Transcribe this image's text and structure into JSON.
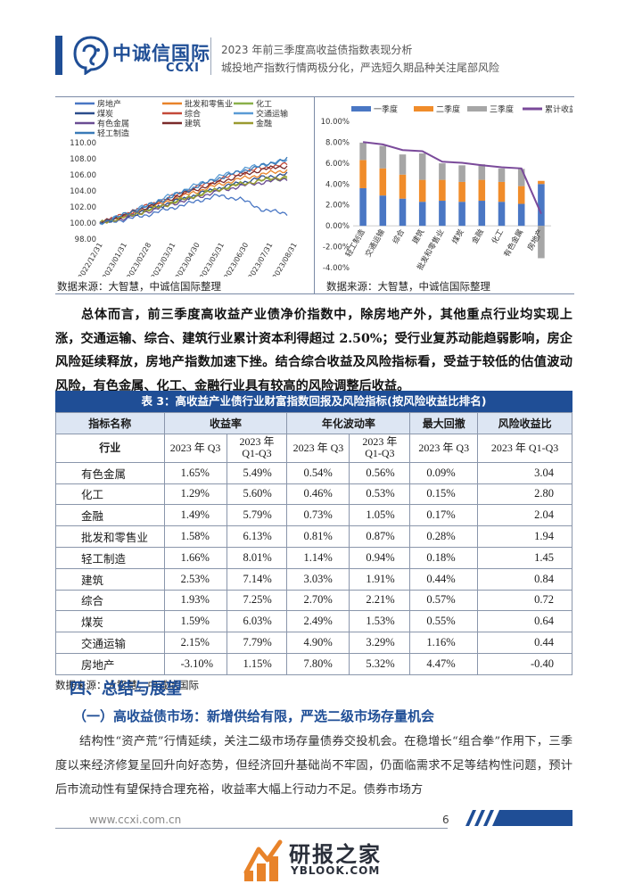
{
  "header": {
    "logo_cn": "中诚信国际",
    "logo_en": "CCXI",
    "title_line1": "2023 年前三季度高收益债指数表现分析",
    "title_line2": "城投地产指数行情两极分化，严选短久期品种关注尾部风险"
  },
  "chart_left": {
    "type": "line",
    "legend": [
      "房地产",
      "批发和零售业",
      "化工",
      "煤炭",
      "综合",
      "交通运输",
      "有色金属",
      "建筑",
      "金融",
      "轻工制造"
    ],
    "legend_colors": [
      "#4a77c4",
      "#e8832a",
      "#8ab04a",
      "#2b4d8c",
      "#c44a3a",
      "#5a9bd5",
      "#6a4c93",
      "#7a2a2a",
      "#9a9a30",
      "#3a7ab8"
    ],
    "yticks": [
      "110.00",
      "108.00",
      "106.00",
      "104.00",
      "102.00",
      "100.00",
      "98.00"
    ],
    "ylim": [
      98,
      110
    ],
    "xticks": [
      "2022/12/31",
      "2023/01/31",
      "2023/02/28",
      "2023/03/31",
      "2023/04/30",
      "2023/05/31",
      "2023/06/30",
      "2023/07/31",
      "2023/08/31"
    ],
    "series_end": [
      {
        "name": "房地产",
        "values": [
          100.0,
          100.4,
          101.0,
          101.8,
          102.6,
          103.4,
          103.0,
          101.6,
          101.2
        ]
      },
      {
        "name": "批发和零售业",
        "values": [
          100.0,
          100.8,
          101.8,
          102.8,
          103.8,
          104.7,
          105.5,
          106.1,
          106.6
        ]
      },
      {
        "name": "化工",
        "values": [
          100.0,
          100.7,
          101.6,
          102.5,
          103.4,
          104.2,
          104.9,
          105.3,
          105.6
        ]
      },
      {
        "name": "煤炭",
        "values": [
          100.0,
          100.7,
          101.6,
          102.5,
          103.4,
          104.3,
          105.0,
          105.7,
          106.1
        ]
      },
      {
        "name": "综合",
        "values": [
          100.0,
          101.0,
          102.1,
          103.2,
          104.3,
          105.3,
          106.2,
          106.9,
          107.3
        ]
      },
      {
        "name": "交通运输",
        "values": [
          100.0,
          101.0,
          102.2,
          103.4,
          104.6,
          105.7,
          106.6,
          107.3,
          107.8
        ]
      },
      {
        "name": "有色金属",
        "values": [
          100.0,
          100.6,
          101.4,
          102.3,
          103.1,
          103.9,
          104.6,
          105.1,
          105.5
        ]
      },
      {
        "name": "建筑",
        "values": [
          100.0,
          100.9,
          102.0,
          103.0,
          104.1,
          105.0,
          105.9,
          106.7,
          107.1
        ]
      },
      {
        "name": "金融",
        "values": [
          100.0,
          100.7,
          101.5,
          102.4,
          103.3,
          104.1,
          104.8,
          105.4,
          105.8
        ]
      },
      {
        "name": "轻工制造",
        "values": [
          100.0,
          101.0,
          102.1,
          103.2,
          104.4,
          105.5,
          106.4,
          107.2,
          108.0
        ]
      }
    ]
  },
  "chart_right": {
    "type": "bar",
    "legend": [
      "一季度",
      "二季度",
      "三季度",
      "累计收益"
    ],
    "legend_colors": [
      "#4a77c4",
      "#f08c2a",
      "#a6a6a6",
      "#7a4a9a"
    ],
    "yticks": [
      "10.00%",
      "8.00%",
      "6.00%",
      "4.00%",
      "2.00%",
      "0.00%",
      "-2.00%",
      "-4.00%"
    ],
    "ylim": [
      -4,
      10
    ],
    "categories": [
      "轻工制造",
      "交通运输",
      "综合",
      "建筑",
      "批发和零售业",
      "煤炭",
      "金融",
      "化工",
      "有色金属",
      "房地产"
    ],
    "q1": [
      3.6,
      2.9,
      2.6,
      2.3,
      2.4,
      2.3,
      2.4,
      2.3,
      2.1,
      4.0
    ],
    "q2": [
      2.7,
      2.6,
      2.3,
      2.1,
      2.0,
      1.9,
      2.0,
      1.9,
      1.7,
      0.3
    ],
    "q3": [
      1.66,
      2.15,
      1.93,
      2.53,
      1.58,
      1.59,
      1.49,
      1.29,
      1.65,
      -3.1
    ],
    "cumulative": [
      8.01,
      7.79,
      7.25,
      7.14,
      6.13,
      6.03,
      5.79,
      5.6,
      5.49,
      1.15
    ]
  },
  "sources": {
    "left": "数据来源：大智慧，中诚信国际整理",
    "right": "数据来源：大智慧，中诚信国际整理",
    "table": "数据来源：大智慧，中诚信国际"
  },
  "paragraph1": "总体而言，前三季度高收益产业债净价指数中，除房地产外，其他重点行业均实现上涨，交通运输、综合、建筑行业累计资本利得超过 2.50%；受行业复苏动能趋弱影响，房企风险延续释放，房地产指数加速下挫。结合综合收益及风险指标看，受益于较低的估值波动风险，有色金属、化工、金融行业具有较高的风险调整后收益。",
  "table": {
    "title": "表 3：高收益产业债行业财富指数回报及风险指标(按风险收益比排名)",
    "headers": [
      "指标名称",
      "收益率",
      "年化波动率",
      "最大回撤",
      "风险收益比"
    ],
    "subheaders": [
      "行业",
      "2023 年 Q3",
      "2023 年 Q1-Q3",
      "2023 年 Q3",
      "2023 年 Q1-Q3",
      "2023 年 Q3",
      "2023 年 Q1-Q3"
    ],
    "rows": [
      [
        "有色金属",
        "1.65%",
        "5.49%",
        "0.54%",
        "0.56%",
        "0.09%",
        "3.04"
      ],
      [
        "化工",
        "1.29%",
        "5.60%",
        "0.46%",
        "0.53%",
        "0.15%",
        "2.80"
      ],
      [
        "金融",
        "1.49%",
        "5.79%",
        "0.73%",
        "1.05%",
        "0.17%",
        "2.04"
      ],
      [
        "批发和零售业",
        "1.58%",
        "6.13%",
        "0.81%",
        "0.87%",
        "0.28%",
        "1.94"
      ],
      [
        "轻工制造",
        "1.66%",
        "8.01%",
        "1.14%",
        "0.94%",
        "0.18%",
        "1.45"
      ],
      [
        "建筑",
        "2.53%",
        "7.14%",
        "3.03%",
        "1.91%",
        "0.44%",
        "0.84"
      ],
      [
        "综合",
        "1.93%",
        "7.25%",
        "2.70%",
        "2.21%",
        "0.57%",
        "0.72"
      ],
      [
        "煤炭",
        "1.59%",
        "6.03%",
        "2.49%",
        "1.53%",
        "0.55%",
        "0.64"
      ],
      [
        "交通运输",
        "2.15%",
        "7.79%",
        "4.90%",
        "3.29%",
        "1.16%",
        "0.44"
      ],
      [
        "房地产",
        "-3.10%",
        "1.15%",
        "7.80%",
        "5.32%",
        "4.47%",
        "-0.40"
      ]
    ]
  },
  "section_heading": "四、总结与展望",
  "subsection_heading": "（一）高收益债市场：新增供给有限，严选二级市场存量机会",
  "paragraph2": "结构性“资产荒”行情延续，关注二级市场存量债券交投机会。在稳增长“组合拳”作用下，三季度以来经济修复呈回升向好态势，但经济回升基础尚不牢固，仍面临需求不足等结构性问题，预计后市流动性有望保持合理充裕，收益率大幅上行动力不足。债券市场方",
  "footer": {
    "url": "www.ccxi.com.cn",
    "page": "6"
  },
  "watermark": {
    "cn": "研报之家",
    "en": "YBLOOK.COM"
  }
}
